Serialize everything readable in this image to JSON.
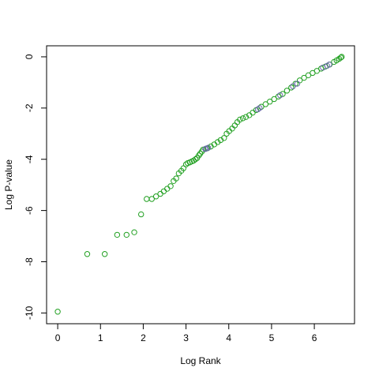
{
  "chart_data": {
    "type": "scatter",
    "x_label": "Log Rank",
    "y_label": "Log P-value",
    "xlim": [
      -0.26,
      6.94
    ],
    "ylim": [
      -10.42,
      0.43
    ],
    "xticks": [
      0,
      1,
      2,
      3,
      4,
      5,
      6
    ],
    "yticks": [
      -10,
      -8,
      -6,
      -4,
      -2,
      0
    ],
    "series": [
      {
        "color": "#22a022",
        "x": [
          0,
          0.69,
          1.1,
          1.39,
          1.61,
          1.79,
          1.95,
          2.08,
          2.2,
          2.3,
          2.4,
          2.48,
          2.56,
          2.64,
          2.71,
          2.77,
          2.83,
          2.89,
          2.94,
          3.0,
          3.04,
          3.09,
          3.14,
          3.18,
          3.22,
          3.26,
          3.3,
          3.33,
          3.37,
          3.4,
          3.5,
          3.58,
          3.66,
          3.74,
          3.81,
          3.89,
          3.95,
          4.01,
          4.08,
          4.14,
          4.2,
          4.26,
          4.33,
          4.4,
          4.48,
          4.56,
          4.64,
          4.76,
          4.86,
          4.96,
          5.06,
          5.16,
          5.26,
          5.36,
          5.46,
          5.56,
          5.66,
          5.76,
          5.86,
          5.96,
          6.06,
          6.16,
          6.26,
          6.36,
          6.46,
          6.52,
          6.58,
          6.62,
          6.64
        ],
        "values": [
          -9.95,
          -7.7,
          -7.7,
          -6.95,
          -6.95,
          -6.85,
          -6.15,
          -5.55,
          -5.55,
          -5.45,
          -5.35,
          -5.25,
          -5.15,
          -5.05,
          -4.85,
          -4.75,
          -4.55,
          -4.45,
          -4.35,
          -4.2,
          -4.15,
          -4.12,
          -4.08,
          -4.05,
          -4.0,
          -3.95,
          -3.85,
          -3.78,
          -3.7,
          -3.62,
          -3.57,
          -3.5,
          -3.42,
          -3.33,
          -3.25,
          -3.17,
          -3.0,
          -2.9,
          -2.8,
          -2.68,
          -2.55,
          -2.45,
          -2.4,
          -2.35,
          -2.28,
          -2.18,
          -2.08,
          -1.95,
          -1.85,
          -1.75,
          -1.65,
          -1.55,
          -1.45,
          -1.32,
          -1.2,
          -1.05,
          -0.92,
          -0.82,
          -0.72,
          -0.63,
          -0.55,
          -0.46,
          -0.38,
          -0.3,
          -0.2,
          -0.14,
          -0.08,
          -0.03,
          0
        ]
      },
      {
        "color": "#6a6aa8",
        "x": [
          3.45,
          3.47,
          3.52,
          4.68,
          4.72,
          5.2,
          5.5,
          5.6,
          6.2,
          6.3,
          6.35
        ],
        "values": [
          -3.6,
          -3.58,
          -3.55,
          -2.05,
          -2.0,
          -1.5,
          -1.15,
          -1.05,
          -0.42,
          -0.35,
          -0.3
        ]
      }
    ]
  }
}
